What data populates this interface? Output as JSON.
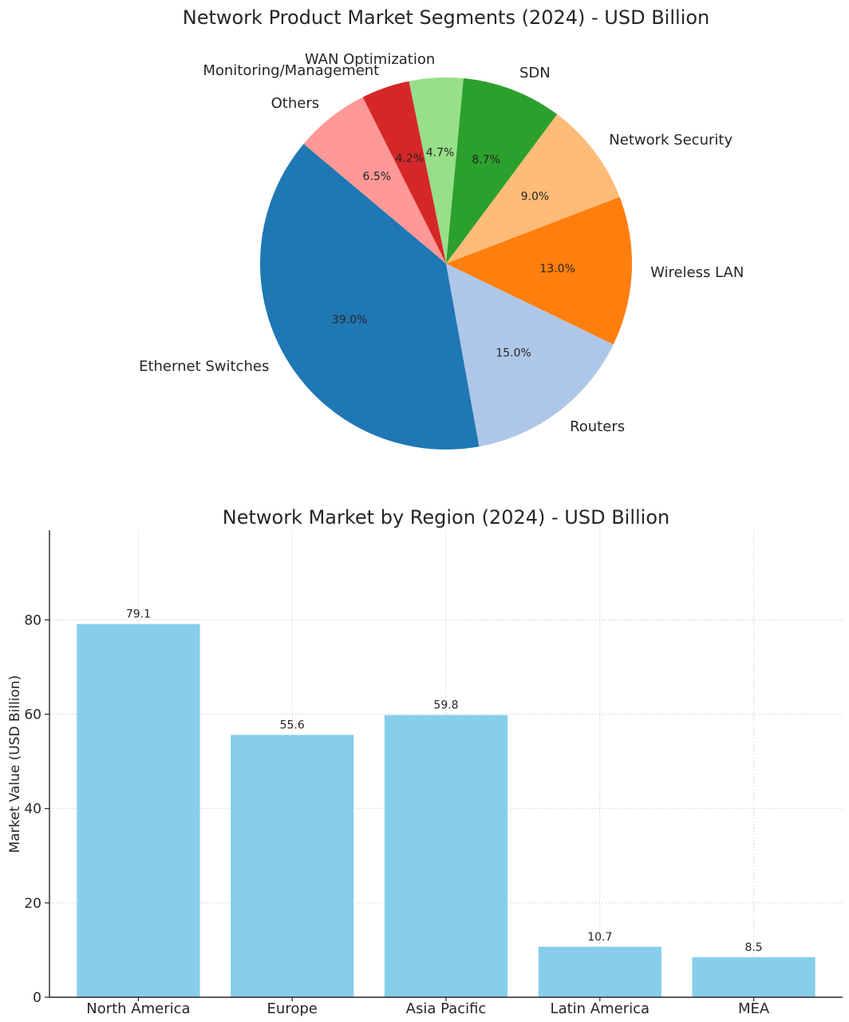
{
  "chart_data": [
    {
      "type": "pie",
      "title": "Network Product Market Segments (2024) - USD Billion",
      "start_angle_deg": 140,
      "direction": "counterclockwise",
      "slices": [
        {
          "label": "Ethernet Switches",
          "value": 39.0,
          "pct_label": "39.0%",
          "color": "#1f77b4"
        },
        {
          "label": "Routers",
          "value": 15.0,
          "pct_label": "15.0%",
          "color": "#aec7e8"
        },
        {
          "label": "Wireless LAN",
          "value": 13.0,
          "pct_label": "13.0%",
          "color": "#ff7f0e"
        },
        {
          "label": "Network Security",
          "value": 9.0,
          "pct_label": "9.0%",
          "color": "#ffbb78"
        },
        {
          "label": "SDN",
          "value": 8.7,
          "pct_label": "8.7%",
          "color": "#2ca02c"
        },
        {
          "label": "WAN Optimization",
          "value": 4.7,
          "pct_label": "4.7%",
          "color": "#98df8a"
        },
        {
          "label": "Monitoring/Management",
          "value": 4.2,
          "pct_label": "4.2%",
          "color": "#d62728"
        },
        {
          "label": "Others",
          "value": 6.5,
          "pct_label": "6.5%",
          "color": "#ff9896"
        }
      ]
    },
    {
      "type": "bar",
      "title": "Network Market by Region (2024) - USD Billion",
      "xlabel": "",
      "ylabel": "Market Value (USD Billion)",
      "categories": [
        "North America",
        "Europe",
        "Asia Pacific",
        "Latin America",
        "MEA"
      ],
      "values": [
        79.1,
        55.6,
        59.8,
        10.7,
        8.5
      ],
      "value_labels": [
        "79.1",
        "55.6",
        "59.8",
        "10.7",
        "8.5"
      ],
      "ylim": [
        0,
        99
      ],
      "yticks": [
        0,
        20,
        40,
        60,
        80
      ],
      "grid": true,
      "bar_color": "#87ceeb"
    }
  ]
}
